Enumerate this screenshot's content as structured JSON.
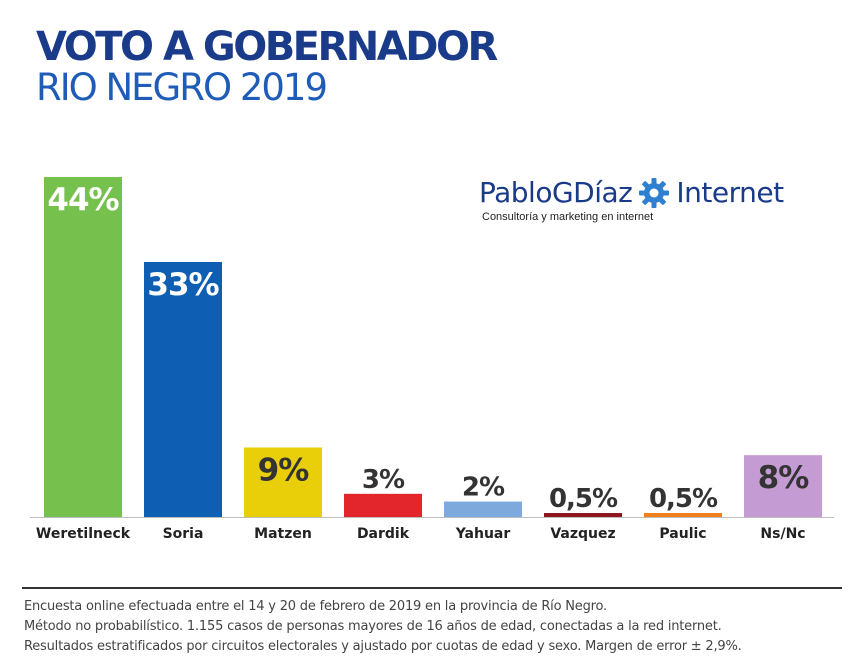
{
  "header": {
    "title": "VOTO A GOBERNADOR",
    "subtitle": "RIO NEGRO 2019"
  },
  "brand": {
    "name_part1": "PabloGDíaz",
    "name_part2": "Internet",
    "tagline": "Consultoría y marketing en internet",
    "icon": "gear-icon"
  },
  "chart_data": {
    "type": "bar",
    "title": "VOTO A GOBERNADOR",
    "subtitle": "RIO NEGRO 2019",
    "categories": [
      "Weretilneck",
      "Soria",
      "Matzen",
      "Dardik",
      "Yahuar",
      "Vazquez",
      "Paulic",
      "Ns/Nc"
    ],
    "values": [
      44,
      33,
      9,
      3,
      2,
      0.5,
      0.5,
      8
    ],
    "labels": [
      "44%",
      "33%",
      "9%",
      "3%",
      "2%",
      "0,5%",
      "0,5%",
      "8%"
    ],
    "colors": [
      "#76c04e",
      "#0e5fb4",
      "#e8cf0a",
      "#e3262b",
      "#7ea9dd",
      "#8d1620",
      "#ef7f1a",
      "#c49bd2"
    ],
    "label_inside": [
      true,
      true,
      true,
      false,
      false,
      false,
      false,
      true
    ],
    "label_colors": [
      "#ffffff",
      "#ffffff",
      "#333333",
      "#333333",
      "#333333",
      "#333333",
      "#333333",
      "#333333"
    ],
    "ylim": [
      0,
      44
    ],
    "xlabel": "",
    "ylabel": "",
    "grid": false
  },
  "footnote": {
    "line1": "Encuesta online efectuada entre el 14 y 20 de febrero de 2019 en la provincia de Río Negro.",
    "line2": "Método no probabilístico. 1.155 casos de personas mayores de 16 años de edad, conectadas a la red internet.",
    "line3": "Resultados estratificados por circuitos electorales y ajustado por cuotas de edad y sexo.  Margen de error ± 2,9%."
  }
}
